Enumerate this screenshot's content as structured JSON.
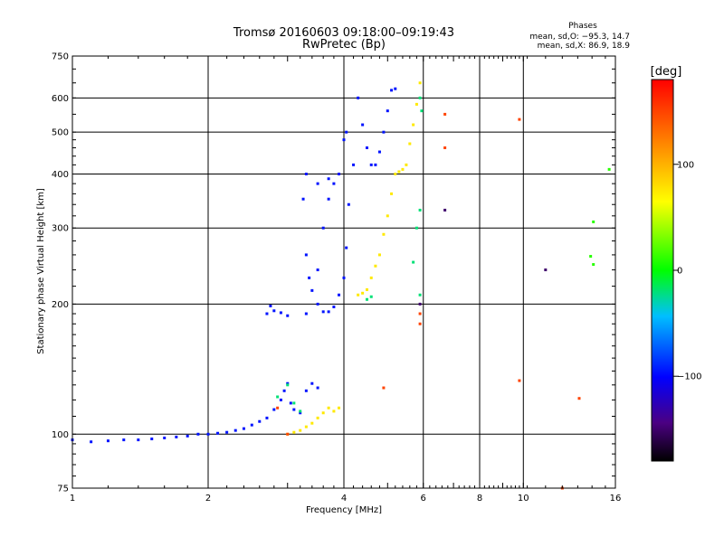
{
  "chart_data": {
    "type": "scatter",
    "title": "Tromsø 20160603 09:18:00–09:19:43",
    "subtitle": "RwPretec (Bp)",
    "xlabel": "Frequency [MHz]",
    "ylabel": "Stationary phase Virtual Height [km]",
    "x_scale": "log",
    "y_scale": "log",
    "xlim": [
      1,
      16
    ],
    "ylim": [
      75,
      750
    ],
    "x_ticks": [
      "1",
      "2",
      "4",
      "6",
      "8",
      "10",
      "16"
    ],
    "y_ticks": [
      "75",
      "100",
      "200",
      "300",
      "400",
      "500",
      "600",
      "750"
    ],
    "grid": true,
    "phase_stats": {
      "title": "Phases",
      "o_line": "mean, sd,O: −95.3, 14.7",
      "x_line": "mean, sd,X:  86.9, 18.9"
    },
    "colorbar": {
      "label": "[deg]",
      "ticks": [
        "100",
        "0",
        "−100"
      ],
      "range": [
        -180,
        180
      ],
      "tick_values": [
        100,
        0,
        -100
      ]
    },
    "series": [
      {
        "phase": -95,
        "points": [
          [
            1.0,
            97
          ],
          [
            1.1,
            96
          ],
          [
            1.2,
            96.5
          ],
          [
            1.3,
            97
          ],
          [
            1.4,
            97
          ],
          [
            1.5,
            97.5
          ],
          [
            1.6,
            98
          ],
          [
            1.7,
            98.5
          ],
          [
            1.8,
            99
          ],
          [
            1.9,
            100
          ],
          [
            2.0,
            100
          ],
          [
            2.1,
            100.5
          ],
          [
            2.2,
            101
          ],
          [
            2.3,
            102
          ],
          [
            2.4,
            103
          ],
          [
            2.5,
            105
          ],
          [
            2.6,
            107
          ],
          [
            2.7,
            109
          ],
          [
            2.8,
            114
          ],
          [
            2.9,
            120
          ],
          [
            2.95,
            126
          ],
          [
            3.0,
            131
          ],
          [
            3.05,
            118
          ],
          [
            3.1,
            114
          ],
          [
            3.2,
            112
          ],
          [
            3.3,
            126
          ],
          [
            3.4,
            131
          ],
          [
            3.5,
            128
          ],
          [
            2.7,
            190
          ],
          [
            2.75,
            198
          ],
          [
            2.8,
            193
          ],
          [
            2.9,
            191
          ],
          [
            3.0,
            188
          ],
          [
            3.3,
            190
          ],
          [
            3.25,
            350
          ],
          [
            3.3,
            260
          ],
          [
            3.35,
            230
          ],
          [
            3.4,
            215
          ],
          [
            3.5,
            200
          ],
          [
            3.6,
            192
          ],
          [
            3.7,
            192
          ],
          [
            3.8,
            197
          ],
          [
            3.9,
            210
          ],
          [
            4.0,
            230
          ],
          [
            4.05,
            270
          ],
          [
            4.1,
            340
          ],
          [
            4.2,
            420
          ],
          [
            4.3,
            600
          ],
          [
            4.4,
            520
          ],
          [
            4.5,
            460
          ],
          [
            4.6,
            420
          ],
          [
            4.7,
            420
          ],
          [
            4.8,
            450
          ],
          [
            4.9,
            500
          ],
          [
            5.0,
            560
          ],
          [
            5.1,
            625
          ],
          [
            5.2,
            630
          ],
          [
            3.5,
            240
          ],
          [
            3.6,
            300
          ],
          [
            3.7,
            350
          ],
          [
            3.8,
            380
          ],
          [
            3.9,
            400
          ],
          [
            4.0,
            480
          ],
          [
            4.05,
            500
          ],
          [
            3.3,
            400
          ],
          [
            3.5,
            380
          ],
          [
            3.7,
            390
          ]
        ]
      },
      {
        "phase": -20,
        "points": [
          [
            2.85,
            122
          ],
          [
            3.0,
            130
          ],
          [
            3.1,
            118
          ],
          [
            3.2,
            113
          ],
          [
            4.5,
            205
          ],
          [
            4.6,
            208
          ],
          [
            5.7,
            250
          ],
          [
            5.8,
            300
          ],
          [
            5.9,
            330
          ],
          [
            5.9,
            210
          ],
          [
            5.95,
            560
          ],
          [
            5.9,
            600
          ]
        ]
      },
      {
        "phase": 75,
        "points": [
          [
            3.0,
            100
          ],
          [
            3.1,
            101
          ],
          [
            3.2,
            102
          ],
          [
            3.3,
            104
          ],
          [
            3.4,
            106
          ],
          [
            3.5,
            109
          ],
          [
            3.6,
            112
          ],
          [
            3.7,
            115
          ],
          [
            3.8,
            113
          ],
          [
            3.9,
            115
          ],
          [
            4.3,
            210
          ],
          [
            4.4,
            212
          ],
          [
            4.5,
            216
          ],
          [
            4.6,
            230
          ],
          [
            4.7,
            245
          ],
          [
            4.8,
            260
          ],
          [
            4.9,
            290
          ],
          [
            5.0,
            320
          ],
          [
            5.1,
            360
          ],
          [
            5.2,
            400
          ],
          [
            5.3,
            405
          ],
          [
            5.4,
            410
          ],
          [
            5.5,
            420
          ],
          [
            5.6,
            470
          ],
          [
            5.7,
            520
          ],
          [
            5.8,
            580
          ],
          [
            5.9,
            650
          ]
        ]
      },
      {
        "phase": 150,
        "points": [
          [
            2.85,
            115
          ],
          [
            3.0,
            100
          ],
          [
            4.9,
            128
          ],
          [
            5.9,
            180
          ],
          [
            5.9,
            190
          ],
          [
            6.7,
            550
          ],
          [
            6.7,
            460
          ],
          [
            9.8,
            535
          ],
          [
            9.8,
            133
          ],
          [
            13.3,
            121
          ],
          [
            12.2,
            75
          ]
        ]
      },
      {
        "phase": -150,
        "points": [
          [
            6.7,
            330
          ],
          [
            11.2,
            240
          ],
          [
            5.9,
            200
          ]
        ]
      },
      {
        "phase": 10,
        "points": [
          [
            14.3,
            310
          ],
          [
            14.3,
            247
          ],
          [
            15.5,
            410
          ],
          [
            14.1,
            258
          ]
        ]
      }
    ]
  }
}
